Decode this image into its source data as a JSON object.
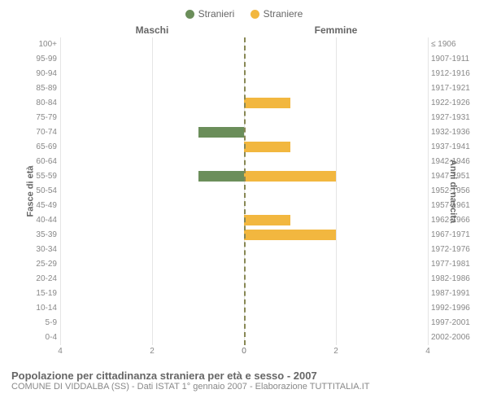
{
  "legend": {
    "male": {
      "label": "Stranieri",
      "color": "#6b8e5a"
    },
    "female": {
      "label": "Straniere",
      "color": "#f2b73f"
    }
  },
  "headers": {
    "left": "Maschi",
    "right": "Femmine"
  },
  "axis_titles": {
    "left": "Fasce di età",
    "right": "Anni di nascita"
  },
  "chart": {
    "type": "population-pyramid",
    "xmax": 4,
    "xticks": [
      0,
      2,
      4
    ],
    "grid_color": "#e5e5e5",
    "center_line_color": "#888855",
    "bar_opacity": 1.0,
    "rows": [
      {
        "age": "100+",
        "birth": "≤ 1906",
        "m": 0,
        "f": 0
      },
      {
        "age": "95-99",
        "birth": "1907-1911",
        "m": 0,
        "f": 0
      },
      {
        "age": "90-94",
        "birth": "1912-1916",
        "m": 0,
        "f": 0
      },
      {
        "age": "85-89",
        "birth": "1917-1921",
        "m": 0,
        "f": 0
      },
      {
        "age": "80-84",
        "birth": "1922-1926",
        "m": 0,
        "f": 1
      },
      {
        "age": "75-79",
        "birth": "1927-1931",
        "m": 0,
        "f": 0
      },
      {
        "age": "70-74",
        "birth": "1932-1936",
        "m": 1,
        "f": 0
      },
      {
        "age": "65-69",
        "birth": "1937-1941",
        "m": 0,
        "f": 1
      },
      {
        "age": "60-64",
        "birth": "1942-1946",
        "m": 0,
        "f": 0
      },
      {
        "age": "55-59",
        "birth": "1947-1951",
        "m": 1,
        "f": 2
      },
      {
        "age": "50-54",
        "birth": "1952-1956",
        "m": 0,
        "f": 0
      },
      {
        "age": "45-49",
        "birth": "1957-1961",
        "m": 0,
        "f": 0
      },
      {
        "age": "40-44",
        "birth": "1962-1966",
        "m": 0,
        "f": 1
      },
      {
        "age": "35-39",
        "birth": "1967-1971",
        "m": 0,
        "f": 2
      },
      {
        "age": "30-34",
        "birth": "1972-1976",
        "m": 0,
        "f": 0
      },
      {
        "age": "25-29",
        "birth": "1977-1981",
        "m": 0,
        "f": 0
      },
      {
        "age": "20-24",
        "birth": "1982-1986",
        "m": 0,
        "f": 0
      },
      {
        "age": "15-19",
        "birth": "1987-1991",
        "m": 0,
        "f": 0
      },
      {
        "age": "10-14",
        "birth": "1992-1996",
        "m": 0,
        "f": 0
      },
      {
        "age": "5-9",
        "birth": "1997-2001",
        "m": 0,
        "f": 0
      },
      {
        "age": "0-4",
        "birth": "2002-2006",
        "m": 0,
        "f": 0
      }
    ]
  },
  "caption": {
    "title": "Popolazione per cittadinanza straniera per età e sesso - 2007",
    "sub": "COMUNE DI VIDDALBA (SS) - Dati ISTAT 1° gennaio 2007 - Elaborazione TUTTITALIA.IT"
  }
}
